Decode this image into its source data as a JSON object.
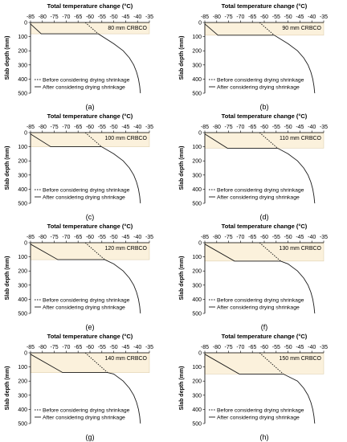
{
  "figure": {
    "x_title": "Total temperature change (°C)",
    "y_title": "Slab depth (mm)",
    "x_ticks": [
      -85,
      -80,
      -75,
      -70,
      -65,
      -60,
      -55,
      -50,
      -45,
      -40,
      -35
    ],
    "y_ticks": [
      0,
      100,
      200,
      300,
      400,
      500
    ],
    "legend": [
      "Before considering drying shrinkage",
      "After considering drying shrinkage"
    ],
    "colors": {
      "curve": "#1a1a1a",
      "shading": "#fbf1dc",
      "shading_border": "#d9c9a6"
    }
  },
  "chart_data": [
    {
      "type": "line",
      "panel_label": "(a)",
      "overlay_label": "80 mm CRBCO",
      "overlay_depth": 80,
      "xlim": [
        -85,
        -35
      ],
      "ylim": [
        500,
        0
      ],
      "xlabel": "Total temperature change (°C)",
      "ylabel": "Slab depth (mm)",
      "legend_position": "bottom-left",
      "series": [
        {
          "name": "Before considering drying shrinkage",
          "style": "dotted",
          "points": [
            [
              -62,
              0
            ],
            [
              -56.5,
              80
            ]
          ]
        },
        {
          "name": "After considering drying shrinkage",
          "style": "solid",
          "points": [
            [
              -85,
              10
            ],
            [
              -80.5,
              80
            ],
            [
              -56.5,
              80
            ],
            [
              -50,
              150
            ],
            [
              -46,
              200
            ],
            [
              -43.4,
              250
            ],
            [
              -41.6,
              300
            ],
            [
              -40.4,
              350
            ],
            [
              -39.6,
              400
            ],
            [
              -39.1,
              450
            ],
            [
              -38.8,
              500
            ]
          ]
        }
      ]
    },
    {
      "type": "line",
      "panel_label": "(b)",
      "overlay_label": "90 mm CRBCO",
      "overlay_depth": 90,
      "xlim": [
        -85,
        -35
      ],
      "ylim": [
        500,
        0
      ],
      "xlabel": "Total temperature change (°C)",
      "ylabel": "Slab depth (mm)",
      "legend_position": "bottom-left",
      "series": [
        {
          "name": "Before considering drying shrinkage",
          "style": "dotted",
          "points": [
            [
              -62,
              0
            ],
            [
              -55.8,
              90
            ]
          ]
        },
        {
          "name": "After considering drying shrinkage",
          "style": "solid",
          "points": [
            [
              -85,
              10
            ],
            [
              -79.5,
              90
            ],
            [
              -55.8,
              90
            ],
            [
              -50,
              150
            ],
            [
              -46,
              200
            ],
            [
              -43.4,
              250
            ],
            [
              -41.6,
              300
            ],
            [
              -40.4,
              350
            ],
            [
              -39.6,
              400
            ],
            [
              -39.1,
              450
            ],
            [
              -38.8,
              500
            ]
          ]
        }
      ]
    },
    {
      "type": "line",
      "panel_label": "(c)",
      "overlay_label": "100 mm CRBCO",
      "overlay_depth": 100,
      "xlim": [
        -85,
        -35
      ],
      "ylim": [
        500,
        0
      ],
      "xlabel": "Total temperature change (°C)",
      "ylabel": "Slab depth (mm)",
      "legend_position": "bottom-left",
      "series": [
        {
          "name": "Before considering drying shrinkage",
          "style": "dotted",
          "points": [
            [
              -62,
              0
            ],
            [
              -55.1,
              100
            ]
          ]
        },
        {
          "name": "After considering drying shrinkage",
          "style": "solid",
          "points": [
            [
              -85,
              10
            ],
            [
              -76.5,
              100
            ],
            [
              -55.1,
              100
            ],
            [
              -50,
              150
            ],
            [
              -46,
              200
            ],
            [
              -43.4,
              250
            ],
            [
              -41.6,
              300
            ],
            [
              -40.4,
              350
            ],
            [
              -39.6,
              400
            ],
            [
              -39.1,
              450
            ],
            [
              -38.8,
              500
            ]
          ]
        }
      ]
    },
    {
      "type": "line",
      "panel_label": "(d)",
      "overlay_label": "110 mm CRBCO",
      "overlay_depth": 110,
      "xlim": [
        -85,
        -35
      ],
      "ylim": [
        500,
        0
      ],
      "xlabel": "Total temperature change (°C)",
      "ylabel": "Slab depth (mm)",
      "legend_position": "bottom-left",
      "series": [
        {
          "name": "Before considering drying shrinkage",
          "style": "dotted",
          "points": [
            [
              -62,
              0
            ],
            [
              -54.4,
              110
            ]
          ]
        },
        {
          "name": "After considering drying shrinkage",
          "style": "solid",
          "points": [
            [
              -85,
              10
            ],
            [
              -75.5,
              110
            ],
            [
              -54.4,
              110
            ],
            [
              -50,
              150
            ],
            [
              -46,
              200
            ],
            [
              -43.4,
              250
            ],
            [
              -41.6,
              300
            ],
            [
              -40.4,
              350
            ],
            [
              -39.6,
              400
            ],
            [
              -39.1,
              450
            ],
            [
              -38.8,
              500
            ]
          ]
        }
      ]
    },
    {
      "type": "line",
      "panel_label": "(e)",
      "overlay_label": "120 mm CRBCO",
      "overlay_depth": 120,
      "xlim": [
        -85,
        -35
      ],
      "ylim": [
        500,
        0
      ],
      "xlabel": "Total temperature change (°C)",
      "ylabel": "Slab depth (mm)",
      "legend_position": "bottom-left",
      "series": [
        {
          "name": "Before considering drying shrinkage",
          "style": "dotted",
          "points": [
            [
              -62,
              0
            ],
            [
              -53.8,
              120
            ]
          ]
        },
        {
          "name": "After considering drying shrinkage",
          "style": "solid",
          "points": [
            [
              -85,
              10
            ],
            [
              -73.5,
              120
            ],
            [
              -53.8,
              120
            ],
            [
              -50,
              150
            ],
            [
              -46,
              200
            ],
            [
              -43.4,
              250
            ],
            [
              -41.6,
              300
            ],
            [
              -40.4,
              350
            ],
            [
              -39.6,
              400
            ],
            [
              -39.1,
              450
            ],
            [
              -38.8,
              500
            ]
          ]
        }
      ]
    },
    {
      "type": "line",
      "panel_label": "(f)",
      "overlay_label": "130 mm CRBCO",
      "overlay_depth": 130,
      "xlim": [
        -85,
        -35
      ],
      "ylim": [
        500,
        0
      ],
      "xlabel": "Total temperature change (°C)",
      "ylabel": "Slab depth (mm)",
      "legend_position": "bottom-left",
      "series": [
        {
          "name": "Before considering drying shrinkage",
          "style": "dotted",
          "points": [
            [
              -62,
              0
            ],
            [
              -53.1,
              130
            ]
          ]
        },
        {
          "name": "After considering drying shrinkage",
          "style": "solid",
          "points": [
            [
              -85,
              10
            ],
            [
              -72.5,
              130
            ],
            [
              -53.1,
              130
            ],
            [
              -50,
              150
            ],
            [
              -46,
              200
            ],
            [
              -43.4,
              250
            ],
            [
              -41.6,
              300
            ],
            [
              -40.4,
              350
            ],
            [
              -39.6,
              400
            ],
            [
              -39.1,
              450
            ],
            [
              -38.8,
              500
            ]
          ]
        }
      ]
    },
    {
      "type": "line",
      "panel_label": "(g)",
      "overlay_label": "140 mm CRBCO",
      "overlay_depth": 140,
      "xlim": [
        -85,
        -35
      ],
      "ylim": [
        500,
        0
      ],
      "xlabel": "Total temperature change (°C)",
      "ylabel": "Slab depth (mm)",
      "legend_position": "bottom-left",
      "series": [
        {
          "name": "Before considering drying shrinkage",
          "style": "dotted",
          "points": [
            [
              -62,
              0
            ],
            [
              -52.6,
              140
            ]
          ]
        },
        {
          "name": "After considering drying shrinkage",
          "style": "solid",
          "points": [
            [
              -85,
              10
            ],
            [
              -71.5,
              140
            ],
            [
              -52.6,
              140
            ],
            [
              -50,
              150
            ],
            [
              -46,
              200
            ],
            [
              -43.4,
              250
            ],
            [
              -41.6,
              300
            ],
            [
              -40.4,
              350
            ],
            [
              -39.6,
              400
            ],
            [
              -39.1,
              450
            ],
            [
              -38.8,
              500
            ]
          ]
        }
      ]
    },
    {
      "type": "line",
      "panel_label": "(h)",
      "overlay_label": "150 mm CRBCO",
      "overlay_depth": 150,
      "xlim": [
        -85,
        -35
      ],
      "ylim": [
        500,
        0
      ],
      "xlabel": "Total temperature change (°C)",
      "ylabel": "Slab depth (mm)",
      "legend_position": "bottom-left",
      "series": [
        {
          "name": "Before considering drying shrinkage",
          "style": "dotted",
          "points": [
            [
              -62,
              0
            ],
            [
              -52,
              150
            ]
          ]
        },
        {
          "name": "After considering drying shrinkage",
          "style": "solid",
          "points": [
            [
              -85,
              10
            ],
            [
              -70.5,
              150
            ],
            [
              -52,
              150
            ],
            [
              -46,
              200
            ],
            [
              -43.4,
              250
            ],
            [
              -41.6,
              300
            ],
            [
              -40.4,
              350
            ],
            [
              -39.6,
              400
            ],
            [
              -39.1,
              450
            ],
            [
              -38.8,
              500
            ]
          ]
        }
      ]
    }
  ]
}
